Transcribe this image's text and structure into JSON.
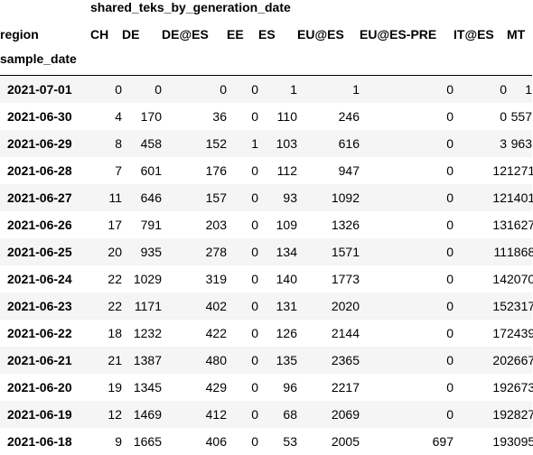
{
  "table": {
    "group_header": "shared_teks_by_generation_date",
    "columns_index_name": "region",
    "row_index_name": "sample_date",
    "columns": [
      "CH",
      "DE",
      "DE@ES",
      "EE",
      "ES",
      "EU@ES",
      "EU@ES-PRE",
      "IT@ES",
      "MT"
    ],
    "rows": [
      {
        "date": "2021-07-01",
        "values": [
          "0",
          "0",
          "0",
          "0",
          "1",
          "1",
          "0",
          "0",
          "1"
        ]
      },
      {
        "date": "2021-06-30",
        "values": [
          "4",
          "170",
          "36",
          "0",
          "110",
          "246",
          "0",
          "0",
          "557"
        ]
      },
      {
        "date": "2021-06-29",
        "values": [
          "8",
          "458",
          "152",
          "1",
          "103",
          "616",
          "0",
          "3",
          "963"
        ]
      },
      {
        "date": "2021-06-28",
        "values": [
          "7",
          "601",
          "176",
          "0",
          "112",
          "947",
          "0",
          "12",
          "1271"
        ]
      },
      {
        "date": "2021-06-27",
        "values": [
          "11",
          "646",
          "157",
          "0",
          "93",
          "1092",
          "0",
          "12",
          "1401"
        ]
      },
      {
        "date": "2021-06-26",
        "values": [
          "17",
          "791",
          "203",
          "0",
          "109",
          "1326",
          "0",
          "13",
          "1627"
        ]
      },
      {
        "date": "2021-06-25",
        "values": [
          "20",
          "935",
          "278",
          "0",
          "134",
          "1571",
          "0",
          "11",
          "1868"
        ]
      },
      {
        "date": "2021-06-24",
        "values": [
          "22",
          "1029",
          "319",
          "0",
          "140",
          "1773",
          "0",
          "14",
          "2070"
        ]
      },
      {
        "date": "2021-06-23",
        "values": [
          "22",
          "1171",
          "402",
          "0",
          "131",
          "2020",
          "0",
          "15",
          "2317"
        ]
      },
      {
        "date": "2021-06-22",
        "values": [
          "18",
          "1232",
          "422",
          "0",
          "126",
          "2144",
          "0",
          "17",
          "2439"
        ]
      },
      {
        "date": "2021-06-21",
        "values": [
          "21",
          "1387",
          "480",
          "0",
          "135",
          "2365",
          "0",
          "20",
          "2667"
        ]
      },
      {
        "date": "2021-06-20",
        "values": [
          "19",
          "1345",
          "429",
          "0",
          "96",
          "2217",
          "0",
          "19",
          "2673"
        ]
      },
      {
        "date": "2021-06-19",
        "values": [
          "12",
          "1469",
          "412",
          "0",
          "68",
          "2069",
          "0",
          "19",
          "2827"
        ]
      },
      {
        "date": "2021-06-18",
        "values": [
          "9",
          "1665",
          "406",
          "0",
          "53",
          "2005",
          "697",
          "19",
          "3095"
        ]
      }
    ]
  }
}
